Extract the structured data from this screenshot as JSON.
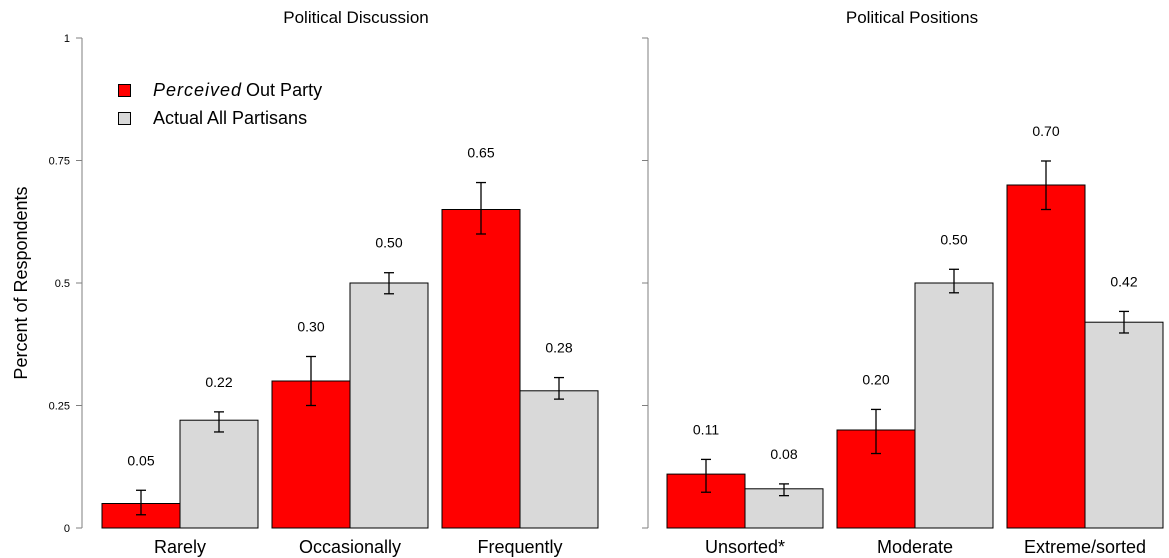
{
  "legend": {
    "perceived_italic": "Perceived",
    "perceived_rest": "Out Party",
    "actual": "Actual All Partisans"
  },
  "colors": {
    "perceived": "#ff0000",
    "actual": "#d9d9d9",
    "axis": "#7f7f7f"
  },
  "chart_data": [
    {
      "type": "bar",
      "title": "Political Discussion",
      "ylabel": "Percent of Respondents",
      "ylim": [
        0,
        1
      ],
      "yticks": [
        0,
        0.25,
        0.5,
        0.75,
        1
      ],
      "ytick_labels": [
        "0",
        "0.25",
        "0.5",
        "0.75",
        "1"
      ],
      "categories": [
        "Rarely",
        "Occasionally",
        "Frequently"
      ],
      "series": [
        {
          "name": "Perceived Out Party",
          "values": [
            0.05,
            0.3,
            0.65
          ],
          "labels": [
            "0.05",
            "0.30",
            "0.65"
          ],
          "err_low": [
            0.027,
            0.25,
            0.6
          ],
          "err_high": [
            0.077,
            0.35,
            0.705
          ]
        },
        {
          "name": "Actual All Partisans",
          "values": [
            0.22,
            0.5,
            0.28
          ],
          "labels": [
            "0.22",
            "0.50",
            "0.28"
          ],
          "err_low": [
            0.196,
            0.478,
            0.263
          ],
          "err_high": [
            0.237,
            0.521,
            0.307
          ]
        }
      ]
    },
    {
      "type": "bar",
      "title": "Political Positions",
      "ylim": [
        0,
        1
      ],
      "categories": [
        "Unsorted*",
        "Moderate",
        "Extreme/sorted"
      ],
      "series": [
        {
          "name": "Perceived Out Party",
          "values": [
            0.11,
            0.2,
            0.7
          ],
          "labels": [
            "0.11",
            "0.20",
            "0.70"
          ],
          "err_low": [
            0.073,
            0.152,
            0.65
          ],
          "err_high": [
            0.14,
            0.242,
            0.749
          ]
        },
        {
          "name": "Actual All Partisans",
          "values": [
            0.08,
            0.5,
            0.42
          ],
          "labels": [
            "0.08",
            "0.50",
            "0.42"
          ],
          "err_low": [
            0.066,
            0.48,
            0.398
          ],
          "err_high": [
            0.09,
            0.528,
            0.442
          ]
        }
      ]
    }
  ]
}
